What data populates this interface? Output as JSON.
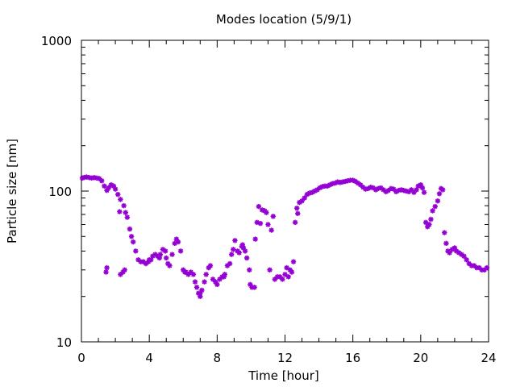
{
  "chart_data": {
    "type": "scatter",
    "title": "Modes location (5/9/1)",
    "xlabel": "Time [hour]",
    "ylabel": "Particle size [nm]",
    "xlim": [
      0,
      24
    ],
    "ylim": [
      10,
      1000
    ],
    "yscale": "log",
    "x_ticks": [
      0,
      4,
      8,
      12,
      16,
      20,
      24
    ],
    "y_ticks": [
      10,
      100,
      1000
    ],
    "grid": false,
    "legend": "none",
    "marker_color": "#9400d3",
    "series": [
      {
        "name": "",
        "points": [
          [
            0.05,
            122
          ],
          [
            0.15,
            123
          ],
          [
            0.3,
            124
          ],
          [
            0.45,
            123
          ],
          [
            0.6,
            122
          ],
          [
            0.75,
            123
          ],
          [
            0.9,
            122
          ],
          [
            1.05,
            121
          ],
          [
            1.2,
            117
          ],
          [
            1.35,
            108
          ],
          [
            1.5,
            101
          ],
          [
            1.6,
            105
          ],
          [
            1.75,
            110
          ],
          [
            1.9,
            108
          ],
          [
            2.0,
            103
          ],
          [
            2.15,
            95
          ],
          [
            2.3,
            88
          ],
          [
            2.25,
            73
          ],
          [
            2.5,
            80
          ],
          [
            2.6,
            72
          ],
          [
            2.7,
            67
          ],
          [
            2.85,
            56
          ],
          [
            2.95,
            50
          ],
          [
            3.05,
            46
          ],
          [
            3.2,
            40
          ],
          [
            3.35,
            35
          ],
          [
            3.5,
            34
          ],
          [
            3.65,
            34
          ],
          [
            3.8,
            33
          ],
          [
            3.95,
            34
          ],
          [
            4.1,
            35
          ],
          [
            4.2,
            37
          ],
          [
            4.35,
            38
          ],
          [
            4.5,
            37
          ],
          [
            4.65,
            38
          ],
          [
            4.8,
            41
          ],
          [
            4.95,
            40
          ],
          [
            5.1,
            33
          ],
          [
            5.2,
            32
          ],
          [
            5.35,
            38
          ],
          [
            5.5,
            45
          ],
          [
            5.6,
            48
          ],
          [
            5.7,
            46
          ],
          [
            5.85,
            40
          ],
          [
            6.0,
            30
          ],
          [
            6.15,
            29
          ],
          [
            6.3,
            28
          ],
          [
            6.45,
            29
          ],
          [
            6.6,
            28
          ],
          [
            6.7,
            25
          ],
          [
            6.8,
            23
          ],
          [
            6.9,
            21
          ],
          [
            7.0,
            20
          ],
          [
            7.1,
            22
          ],
          [
            7.25,
            25
          ],
          [
            7.35,
            28
          ],
          [
            7.5,
            31
          ],
          [
            7.6,
            32
          ],
          [
            7.75,
            26
          ],
          [
            7.9,
            25
          ],
          [
            8.0,
            24
          ],
          [
            8.15,
            26
          ],
          [
            8.3,
            27
          ],
          [
            8.45,
            28
          ],
          [
            8.6,
            32
          ],
          [
            8.75,
            33
          ],
          [
            8.85,
            38
          ],
          [
            8.95,
            41
          ],
          [
            9.05,
            47
          ],
          [
            9.2,
            40
          ],
          [
            9.3,
            39
          ],
          [
            9.45,
            43
          ],
          [
            9.55,
            42
          ],
          [
            9.65,
            40
          ],
          [
            9.75,
            36
          ],
          [
            9.9,
            30
          ],
          [
            9.95,
            24
          ],
          [
            10.05,
            23
          ],
          [
            10.2,
            23
          ],
          [
            10.25,
            48
          ],
          [
            10.35,
            62
          ],
          [
            10.45,
            79
          ],
          [
            10.55,
            61
          ],
          [
            10.65,
            75
          ],
          [
            10.8,
            74
          ],
          [
            10.9,
            72
          ],
          [
            11.0,
            60
          ],
          [
            11.1,
            30
          ],
          [
            11.2,
            55
          ],
          [
            11.3,
            68
          ],
          [
            11.4,
            26
          ],
          [
            11.55,
            27
          ],
          [
            11.7,
            27
          ],
          [
            11.85,
            26
          ],
          [
            12.0,
            28
          ],
          [
            12.1,
            31
          ],
          [
            12.2,
            27
          ],
          [
            12.3,
            30
          ],
          [
            12.4,
            29
          ],
          [
            12.5,
            34
          ],
          [
            12.6,
            62
          ],
          [
            12.7,
            77
          ],
          [
            12.75,
            71
          ],
          [
            12.85,
            84
          ],
          [
            13.0,
            86
          ],
          [
            13.15,
            90
          ],
          [
            13.3,
            95
          ],
          [
            13.45,
            97
          ],
          [
            13.6,
            98
          ],
          [
            13.75,
            100
          ],
          [
            13.9,
            102
          ],
          [
            14.05,
            105
          ],
          [
            14.2,
            107
          ],
          [
            14.35,
            108
          ],
          [
            14.5,
            108
          ],
          [
            14.65,
            110
          ],
          [
            14.8,
            112
          ],
          [
            14.95,
            113
          ],
          [
            15.1,
            115
          ],
          [
            15.25,
            114
          ],
          [
            15.4,
            115
          ],
          [
            15.55,
            116
          ],
          [
            15.7,
            117
          ],
          [
            15.85,
            118
          ],
          [
            16.0,
            118
          ],
          [
            16.15,
            116
          ],
          [
            16.3,
            113
          ],
          [
            16.45,
            110
          ],
          [
            16.6,
            106
          ],
          [
            16.75,
            103
          ],
          [
            16.9,
            104
          ],
          [
            17.05,
            106
          ],
          [
            17.2,
            105
          ],
          [
            17.35,
            102
          ],
          [
            17.5,
            104
          ],
          [
            17.65,
            105
          ],
          [
            17.8,
            102
          ],
          [
            17.95,
            99
          ],
          [
            18.1,
            101
          ],
          [
            18.25,
            104
          ],
          [
            18.4,
            103
          ],
          [
            18.55,
            99
          ],
          [
            18.7,
            101
          ],
          [
            18.85,
            102
          ],
          [
            19.0,
            101
          ],
          [
            19.15,
            100
          ],
          [
            19.3,
            99
          ],
          [
            19.45,
            102
          ],
          [
            19.6,
            98
          ],
          [
            19.75,
            102
          ],
          [
            19.85,
            108
          ],
          [
            20.0,
            110
          ],
          [
            20.1,
            105
          ],
          [
            20.2,
            98
          ],
          [
            20.3,
            62
          ],
          [
            20.4,
            58
          ],
          [
            20.5,
            60
          ],
          [
            20.6,
            65
          ],
          [
            20.7,
            74
          ],
          [
            20.85,
            79
          ],
          [
            21.0,
            86
          ],
          [
            21.1,
            96
          ],
          [
            21.2,
            104
          ],
          [
            21.3,
            102
          ],
          [
            21.4,
            53
          ],
          [
            21.5,
            45
          ],
          [
            21.6,
            40
          ],
          [
            21.7,
            39
          ],
          [
            21.85,
            41
          ],
          [
            22.0,
            42
          ],
          [
            22.1,
            40
          ],
          [
            22.25,
            39
          ],
          [
            22.4,
            38
          ],
          [
            22.55,
            37
          ],
          [
            22.7,
            35
          ],
          [
            22.85,
            33
          ],
          [
            23.0,
            32
          ],
          [
            23.15,
            32
          ],
          [
            23.3,
            31
          ],
          [
            23.45,
            31
          ],
          [
            23.6,
            30
          ],
          [
            23.75,
            30
          ],
          [
            23.9,
            31
          ],
          [
            1.45,
            29
          ],
          [
            1.5,
            31
          ],
          [
            2.3,
            28
          ],
          [
            2.45,
            29
          ],
          [
            2.55,
            30
          ],
          [
            4.0,
            35
          ],
          [
            4.6,
            36
          ],
          [
            5.0,
            36
          ],
          [
            6.1,
            29
          ],
          [
            7.0,
            21
          ],
          [
            8.4,
            27
          ],
          [
            9.5,
            44
          ]
        ]
      }
    ]
  }
}
